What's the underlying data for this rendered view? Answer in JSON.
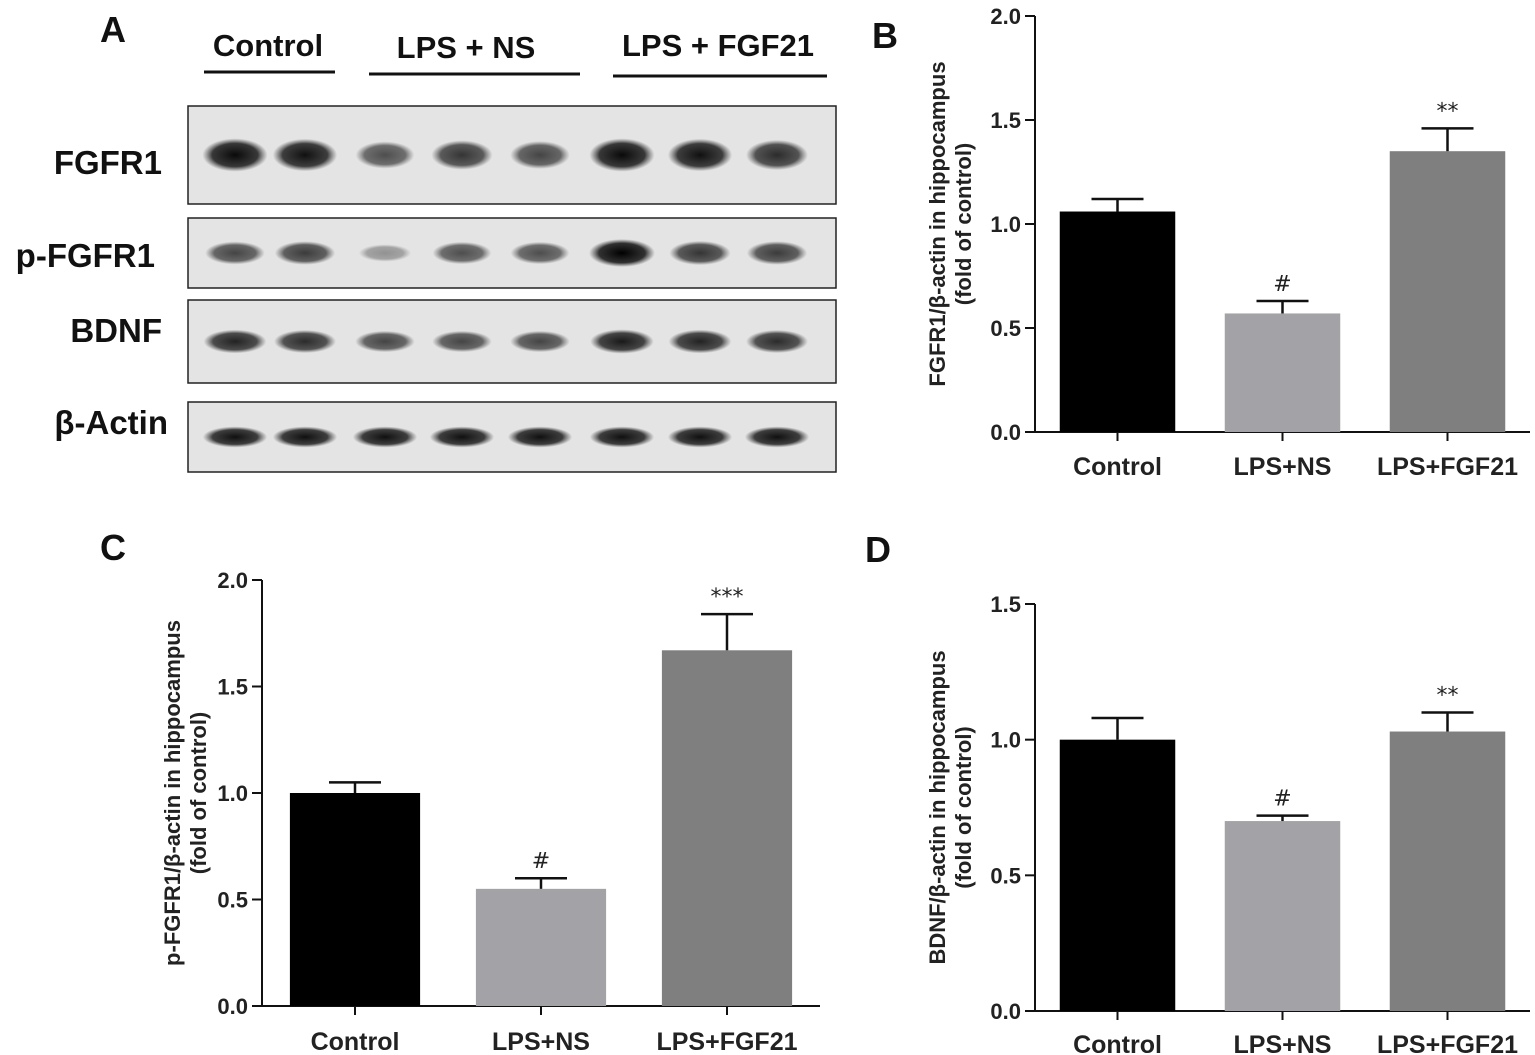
{
  "panel_a": {
    "letter": "A",
    "groups": [
      {
        "label": "Control",
        "lanes": 2
      },
      {
        "label": "LPS + NS",
        "lanes": 3
      },
      {
        "label": "LPS + FGF21",
        "lanes": 3
      }
    ],
    "rows": [
      {
        "label": "FGFR1",
        "intensity": [
          0.95,
          0.9,
          0.55,
          0.7,
          0.6,
          0.95,
          0.9,
          0.75
        ]
      },
      {
        "label": "p-FGFR1",
        "intensity": [
          0.6,
          0.65,
          0.15,
          0.55,
          0.55,
          1.0,
          0.7,
          0.65
        ]
      },
      {
        "label": "BDNF",
        "intensity": [
          0.8,
          0.75,
          0.6,
          0.6,
          0.6,
          0.85,
          0.8,
          0.75
        ]
      },
      {
        "label": "β-Actin",
        "intensity": [
          0.9,
          0.9,
          0.9,
          0.9,
          0.9,
          0.9,
          0.9,
          0.9
        ]
      }
    ]
  },
  "chart_data": [
    {
      "panel": "B",
      "type": "bar",
      "categories": [
        "Control",
        "LPS+NS",
        "LPS+FGF21"
      ],
      "values": [
        1.06,
        0.57,
        1.35
      ],
      "errors": [
        0.06,
        0.06,
        0.11
      ],
      "annotations": [
        "",
        "#",
        "**"
      ],
      "bar_colors": [
        "#000000",
        "#a3a3a7",
        "#7f7f7f"
      ],
      "ylabel": [
        "FGFR1/β-actin in hippocampus",
        "(fold of control)"
      ],
      "ylim": [
        0,
        2.0
      ],
      "yticks": [
        "0.0",
        "0.5",
        "1.0",
        "1.5",
        "2.0"
      ]
    },
    {
      "panel": "C",
      "type": "bar",
      "categories": [
        "Control",
        "LPS+NS",
        "LPS+FGF21"
      ],
      "values": [
        1.0,
        0.55,
        1.67
      ],
      "errors": [
        0.05,
        0.05,
        0.17
      ],
      "annotations": [
        "",
        "#",
        "***"
      ],
      "bar_colors": [
        "#000000",
        "#a3a3a7",
        "#7f7f7f"
      ],
      "ylabel": [
        "p-FGFR1/β-actin in hippocampus",
        "(fold of control)"
      ],
      "ylim": [
        0,
        2.0
      ],
      "yticks": [
        "0.0",
        "0.5",
        "1.0",
        "1.5",
        "2.0"
      ]
    },
    {
      "panel": "D",
      "type": "bar",
      "categories": [
        "Control",
        "LPS+NS",
        "LPS+FGF21"
      ],
      "values": [
        1.0,
        0.7,
        1.03
      ],
      "errors": [
        0.08,
        0.02,
        0.07
      ],
      "annotations": [
        "",
        "#",
        "**"
      ],
      "bar_colors": [
        "#000000",
        "#a3a3a7",
        "#7f7f7f"
      ],
      "ylabel": [
        "BDNF/β-actin in hippocampus",
        "(fold of control)"
      ],
      "ylim": [
        0,
        1.5
      ],
      "yticks": [
        "0.0",
        "0.5",
        "1.0",
        "1.5"
      ]
    }
  ]
}
